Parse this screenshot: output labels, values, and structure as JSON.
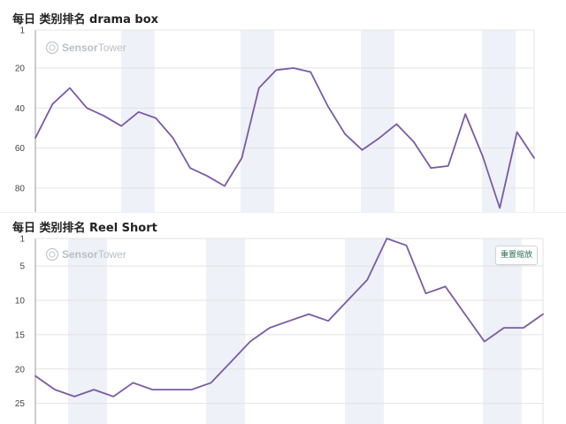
{
  "panels": [
    {
      "title": "每日 类别排名  drama box"
    },
    {
      "title": "每日 类别排名  Reel Short"
    }
  ],
  "watermark": {
    "brand_a": "Sensor",
    "brand_b": "Tower"
  },
  "reset_button": {
    "label": "重置缩放"
  },
  "colors": {
    "line": "#7b5aa6",
    "band": "#eef1f7",
    "grid": "#e3e3e3",
    "axis": "#9a9a9a"
  },
  "chart_data": [
    {
      "type": "line",
      "title": "每日 类别排名  drama box",
      "y_inverted": true,
      "ylim": [
        1,
        92
      ],
      "yticks": [
        1,
        20,
        40,
        60,
        80
      ],
      "series": [
        {
          "values": [
            55,
            38,
            30,
            40,
            44,
            49,
            42,
            45,
            55,
            70,
            74,
            79,
            65,
            30,
            21,
            20,
            22,
            39,
            53,
            61,
            55,
            48,
            57,
            70,
            69,
            43,
            64,
            90,
            52,
            65
          ]
        }
      ],
      "grid": true
    },
    {
      "type": "line",
      "title": "每日 类别排名  Reel Short",
      "y_inverted": true,
      "ylim": [
        1,
        28
      ],
      "yticks": [
        1,
        5,
        10,
        15,
        20,
        25
      ],
      "series": [
        {
          "values": [
            21,
            23,
            24,
            23,
            24,
            22,
            23,
            23,
            23,
            22,
            19,
            16,
            14,
            13,
            12,
            13,
            10,
            7,
            1,
            2,
            9,
            8,
            12,
            16,
            14,
            14,
            12
          ]
        }
      ],
      "grid": true
    }
  ]
}
